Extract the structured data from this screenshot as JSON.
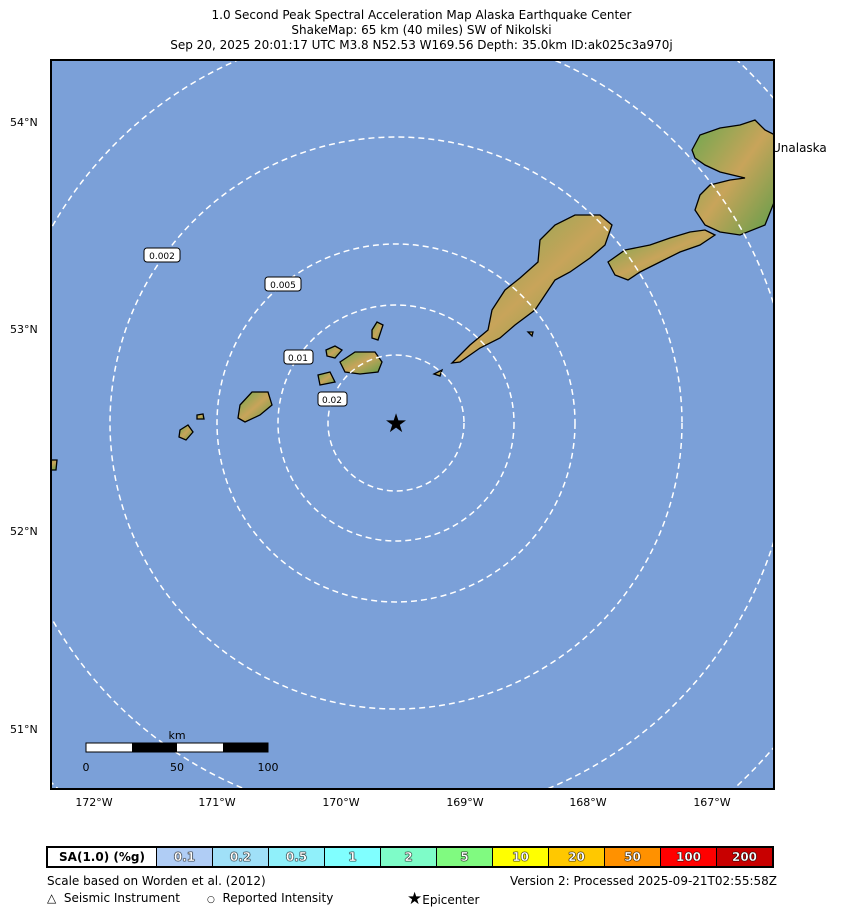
{
  "title": {
    "line1": "1.0 Second Peak Spectral Acceleration Map Alaska Earthquake Center",
    "line2": "ShakeMap: 65 km (40 miles) SW of Nikolski",
    "line3": "Sep 20, 2025 20:01:17 UTC M3.8 N52.53 W169.56 Depth: 35.0km ID:ak025c3a970j"
  },
  "map": {
    "water_color": "#7ba0d8",
    "place_label": "Unalaska",
    "contour_labels": [
      "0.002",
      "0.005",
      "0.01",
      "0.02"
    ],
    "epicenter_icon": "star-icon",
    "lat_ticks": [
      "54°N",
      "53°N",
      "52°N",
      "51°N"
    ],
    "lon_ticks": [
      "172°W",
      "171°W",
      "170°W",
      "169°W",
      "168°W",
      "167°W"
    ],
    "scalebar": {
      "unit": "km",
      "labels": [
        "0",
        "50",
        "100"
      ]
    }
  },
  "legend": {
    "label": "SA(1.0) (%g)",
    "bins": [
      {
        "v": "0.1",
        "c": "#b0cdf5"
      },
      {
        "v": "0.2",
        "c": "#a0e0f8"
      },
      {
        "v": "0.5",
        "c": "#90f0fa"
      },
      {
        "v": "1",
        "c": "#80ffff"
      },
      {
        "v": "2",
        "c": "#7efcc8"
      },
      {
        "v": "5",
        "c": "#80fa80"
      },
      {
        "v": "10",
        "c": "#ffff00"
      },
      {
        "v": "20",
        "c": "#ffc800"
      },
      {
        "v": "50",
        "c": "#ff9100"
      },
      {
        "v": "100",
        "c": "#ff0000"
      },
      {
        "v": "200",
        "c": "#c80000"
      }
    ]
  },
  "footer": {
    "scale_note": "Scale based on Worden et al. (2012)",
    "version": "Version 2: Processed 2025-09-21T02:55:58Z",
    "seismic": "Seismic Instrument",
    "reported": "Reported Intensity",
    "epicenter": "Epicenter"
  }
}
